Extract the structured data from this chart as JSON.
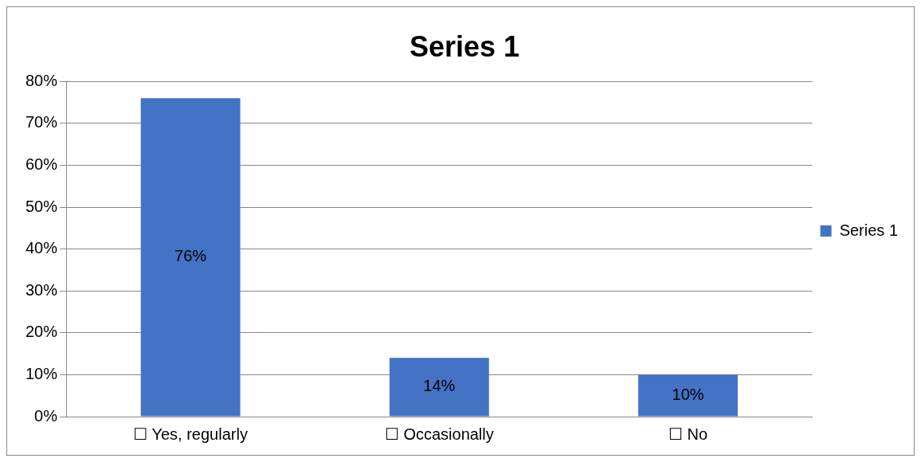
{
  "chart_data": {
    "type": "bar",
    "title": "Series 1",
    "categories": [
      "☐ Yes, regularly",
      "☐ Occasionally",
      "☐ No"
    ],
    "series": [
      {
        "name": "Series 1",
        "color": "#4472c4",
        "values": [
          76,
          14,
          10
        ],
        "value_labels": [
          "76%",
          "14%",
          "10%"
        ]
      }
    ],
    "ylim": [
      0,
      80
    ],
    "yticks": [
      {
        "value": 0,
        "label": "0%"
      },
      {
        "value": 10,
        "label": "10%"
      },
      {
        "value": 20,
        "label": "20%"
      },
      {
        "value": 30,
        "label": "30%"
      },
      {
        "value": 40,
        "label": "40%"
      },
      {
        "value": 50,
        "label": "50%"
      },
      {
        "value": 60,
        "label": "60%"
      },
      {
        "value": 70,
        "label": "70%"
      },
      {
        "value": 80,
        "label": "80%"
      }
    ],
    "grid": "y",
    "legend": "right"
  }
}
